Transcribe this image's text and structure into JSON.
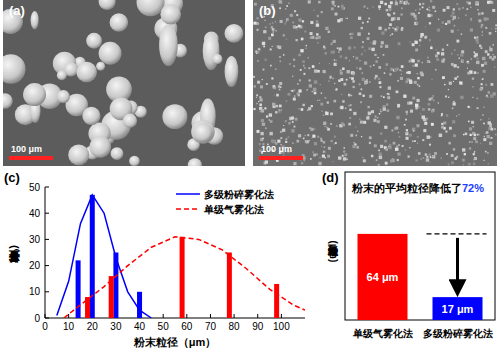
{
  "images": [
    {
      "label": "(a)",
      "scale_bar": "100 μm"
    },
    {
      "label": "(b)",
      "scale_bar": "100 μm"
    }
  ],
  "chart_data": [
    {
      "type": "bar",
      "panel": "(c)",
      "x_label": "粉末粒径（μm）",
      "y_label": "百分含量 (%)",
      "xlim": [
        0,
        110
      ],
      "xticks": [
        0,
        10,
        20,
        30,
        40,
        50,
        60,
        70,
        80,
        90,
        100
      ],
      "ylim": [
        0,
        50
      ],
      "yticks": [
        0,
        10,
        20,
        30,
        40,
        50
      ],
      "legend": "upper right",
      "series": [
        {
          "type": "bar",
          "color": "#0000ff",
          "x": [
            14,
            20,
            30,
            40
          ],
          "values": [
            22,
            47,
            25,
            10
          ]
        },
        {
          "type": "bar",
          "color": "#ff0000",
          "x": [
            18,
            28,
            58,
            78,
            98
          ],
          "values": [
            8,
            16,
            31,
            25,
            13
          ]
        },
        {
          "name": "多级粉碎雾化法",
          "type": "line",
          "line_style": "solid",
          "color": "#0000ff",
          "x": [
            5,
            10,
            15,
            20,
            25,
            30,
            35,
            40,
            45
          ],
          "values": [
            1,
            14,
            36,
            47,
            40,
            23,
            10,
            3,
            0
          ]
        },
        {
          "name": "单级气雾化法",
          "type": "line",
          "line_style": "dashed",
          "color": "#ff0000",
          "x": [
            8,
            15,
            25,
            35,
            45,
            55,
            65,
            75,
            85,
            95,
            105,
            110
          ],
          "values": [
            0,
            5,
            12,
            20,
            27,
            31,
            30,
            26,
            19,
            11,
            5,
            3
          ]
        }
      ]
    },
    {
      "type": "bar",
      "panel": "(d)",
      "title": "粉末的平均粒径降低了",
      "annotations": [
        "72%"
      ],
      "y_label": "粉末平均粒径 (μm)",
      "categories": [
        "单级气雾化法",
        "多级粉碎雾化法"
      ],
      "values": [
        64,
        17
      ],
      "value_labels": [
        "64 μm",
        "17 μm"
      ],
      "colors": [
        "#ff0000",
        "#0000ff"
      ],
      "ylim": [
        0,
        110
      ],
      "tick_labels": "x",
      "data_labels": true
    }
  ]
}
